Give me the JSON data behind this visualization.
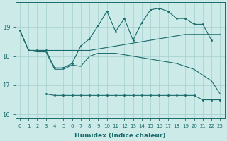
{
  "xlabel": "Humidex (Indice chaleur)",
  "background_color": "#cceae8",
  "grid_color": "#aad4d2",
  "line_color": "#1a6b6b",
  "x": [
    0,
    1,
    2,
    3,
    4,
    5,
    6,
    7,
    8,
    9,
    10,
    11,
    12,
    13,
    14,
    15,
    16,
    17,
    18,
    19,
    20,
    21,
    22,
    23
  ],
  "line_max": [
    18.9,
    18.2,
    18.2,
    18.2,
    17.6,
    17.6,
    17.75,
    18.35,
    18.6,
    19.05,
    19.55,
    18.85,
    19.3,
    18.55,
    19.15,
    19.6,
    19.65,
    19.55,
    19.3,
    19.3,
    19.1,
    19.1,
    18.55,
    null
  ],
  "line_upper": [
    18.9,
    18.2,
    18.2,
    18.2,
    18.2,
    18.2,
    18.2,
    18.2,
    18.2,
    18.25,
    18.3,
    18.35,
    18.4,
    18.45,
    18.5,
    18.55,
    18.6,
    18.65,
    18.7,
    18.75,
    18.75,
    18.75,
    18.75,
    18.75
  ],
  "line_lower": [
    18.9,
    18.2,
    18.15,
    18.15,
    17.55,
    17.55,
    17.7,
    17.65,
    18.0,
    18.1,
    18.1,
    18.1,
    18.05,
    18.0,
    17.95,
    17.9,
    17.85,
    17.8,
    17.75,
    17.65,
    17.55,
    17.35,
    17.15,
    16.7
  ],
  "line_min": [
    null,
    null,
    null,
    16.7,
    16.65,
    16.65,
    16.65,
    16.65,
    16.65,
    16.65,
    16.65,
    16.65,
    16.65,
    16.65,
    16.65,
    16.65,
    16.65,
    16.65,
    16.65,
    16.65,
    16.65,
    16.5,
    16.5,
    16.5
  ],
  "ylim": [
    15.85,
    19.85
  ],
  "yticks": [
    16,
    17,
    18,
    19
  ],
  "xticks": [
    0,
    1,
    2,
    3,
    4,
    5,
    6,
    7,
    8,
    9,
    10,
    11,
    12,
    13,
    14,
    15,
    16,
    17,
    18,
    19,
    20,
    21,
    22,
    23
  ]
}
